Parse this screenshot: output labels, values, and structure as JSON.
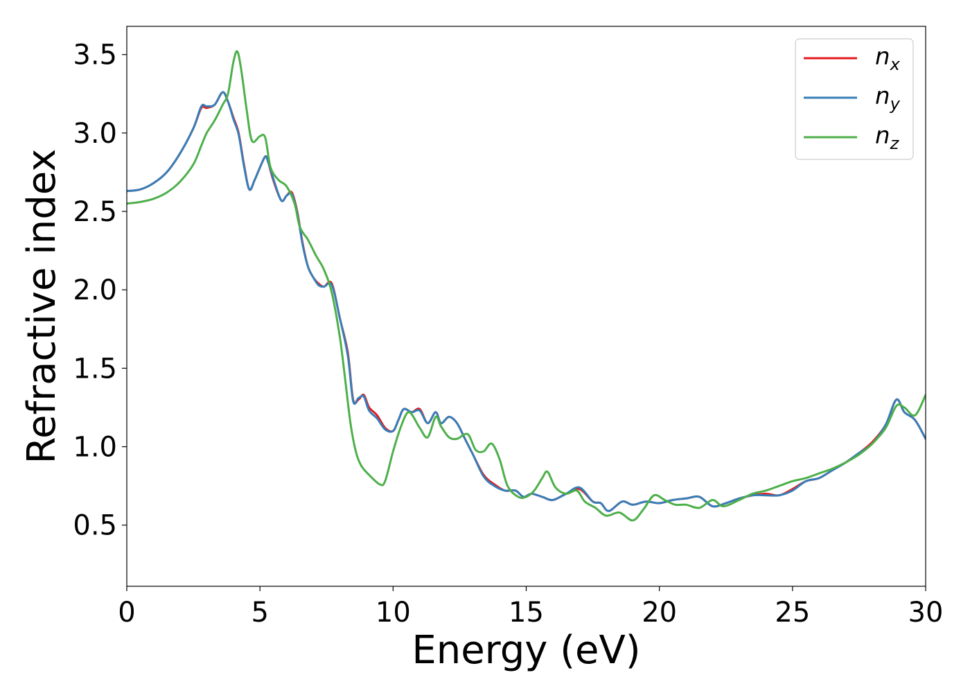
{
  "chart_data": {
    "type": "line",
    "title": "",
    "xlabel": "Energy (eV)",
    "ylabel": "Refractive index",
    "xlim": [
      0,
      30
    ],
    "ylim": [
      0.11,
      3.68
    ],
    "xticks": [
      0,
      5,
      10,
      15,
      20,
      25,
      30
    ],
    "yticks": [
      0.5,
      1.0,
      1.5,
      2.0,
      2.5,
      3.0,
      3.5
    ],
    "xtick_labels": [
      "0",
      "5",
      "10",
      "15",
      "20",
      "25",
      "30"
    ],
    "ytick_labels": [
      "0.5",
      "1.0",
      "1.5",
      "2.0",
      "2.5",
      "3.0",
      "3.5"
    ],
    "grid": false,
    "legend": {
      "position": "top-right",
      "entries": [
        {
          "symbol": "n",
          "sub": "x"
        },
        {
          "symbol": "n",
          "sub": "y"
        },
        {
          "symbol": "n",
          "sub": "z"
        }
      ]
    },
    "series": [
      {
        "name": "n_x",
        "color": "#e41a1c",
        "x": [
          0,
          0.5,
          1,
          1.5,
          2,
          2.5,
          2.8,
          3.0,
          3.3,
          3.6,
          3.8,
          4.0,
          4.2,
          4.4,
          4.6,
          4.8,
          5.0,
          5.2,
          5.3,
          5.5,
          5.8,
          6.0,
          6.2,
          6.4,
          6.6,
          6.8,
          7.0,
          7.2,
          7.4,
          7.7,
          8.0,
          8.3,
          8.5,
          8.7,
          8.9,
          9.1,
          9.4,
          9.7,
          10.0,
          10.2,
          10.4,
          10.7,
          11.0,
          11.3,
          11.6,
          11.8,
          12.1,
          12.4,
          12.7,
          13.0,
          13.4,
          13.8,
          14.2,
          14.6,
          14.9,
          15.2,
          15.6,
          16.0,
          16.5,
          17.0,
          17.5,
          17.8,
          18.1,
          18.6,
          19.0,
          19.5,
          20.0,
          20.5,
          21.0,
          21.5,
          22.0,
          22.5,
          23.0,
          23.5,
          24.0,
          24.5,
          25.0,
          25.5,
          26.0,
          26.5,
          27.0,
          27.5,
          28.0,
          28.5,
          28.9,
          29.2,
          29.6,
          30.0
        ],
        "y": [
          2.63,
          2.64,
          2.68,
          2.75,
          2.87,
          3.03,
          3.16,
          3.16,
          3.18,
          3.26,
          3.2,
          3.1,
          3.0,
          2.8,
          2.64,
          2.7,
          2.78,
          2.85,
          2.82,
          2.7,
          2.57,
          2.6,
          2.62,
          2.5,
          2.3,
          2.15,
          2.08,
          2.04,
          2.02,
          2.04,
          1.82,
          1.6,
          1.3,
          1.3,
          1.33,
          1.25,
          1.2,
          1.12,
          1.1,
          1.17,
          1.24,
          1.22,
          1.24,
          1.15,
          1.22,
          1.15,
          1.19,
          1.15,
          1.05,
          0.95,
          0.82,
          0.76,
          0.72,
          0.72,
          0.68,
          0.7,
          0.68,
          0.66,
          0.7,
          0.73,
          0.65,
          0.64,
          0.59,
          0.65,
          0.63,
          0.65,
          0.64,
          0.66,
          0.67,
          0.68,
          0.62,
          0.64,
          0.67,
          0.69,
          0.7,
          0.69,
          0.73,
          0.78,
          0.8,
          0.85,
          0.9,
          0.96,
          1.03,
          1.14,
          1.3,
          1.22,
          1.17,
          1.05
        ]
      },
      {
        "name": "n_y",
        "color": "#377eb8",
        "x": [
          0,
          0.5,
          1,
          1.5,
          2,
          2.5,
          2.8,
          3.0,
          3.3,
          3.6,
          3.8,
          4.0,
          4.2,
          4.4,
          4.6,
          4.8,
          5.0,
          5.2,
          5.3,
          5.5,
          5.8,
          6.0,
          6.2,
          6.4,
          6.6,
          6.8,
          7.0,
          7.2,
          7.4,
          7.7,
          8.0,
          8.3,
          8.5,
          8.7,
          8.9,
          9.1,
          9.4,
          9.7,
          10.0,
          10.2,
          10.4,
          10.7,
          11.0,
          11.3,
          11.6,
          11.8,
          12.1,
          12.4,
          12.7,
          13.0,
          13.4,
          13.8,
          14.2,
          14.6,
          14.9,
          15.2,
          15.6,
          16.0,
          16.5,
          17.0,
          17.5,
          17.8,
          18.1,
          18.6,
          19.0,
          19.5,
          20.0,
          20.5,
          21.0,
          21.5,
          22.0,
          22.5,
          23.0,
          23.5,
          24.0,
          24.5,
          25.0,
          25.5,
          26.0,
          26.5,
          27.0,
          27.5,
          28.0,
          28.5,
          28.9,
          29.2,
          29.6,
          30.0
        ],
        "y": [
          2.63,
          2.64,
          2.68,
          2.75,
          2.87,
          3.03,
          3.17,
          3.17,
          3.18,
          3.26,
          3.2,
          3.09,
          2.99,
          2.79,
          2.64,
          2.7,
          2.78,
          2.85,
          2.82,
          2.71,
          2.57,
          2.6,
          2.61,
          2.49,
          2.29,
          2.15,
          2.08,
          2.03,
          2.02,
          2.03,
          1.82,
          1.58,
          1.29,
          1.31,
          1.32,
          1.23,
          1.18,
          1.11,
          1.1,
          1.17,
          1.24,
          1.22,
          1.23,
          1.15,
          1.22,
          1.15,
          1.19,
          1.15,
          1.05,
          0.95,
          0.81,
          0.75,
          0.72,
          0.72,
          0.68,
          0.7,
          0.68,
          0.66,
          0.7,
          0.74,
          0.65,
          0.64,
          0.59,
          0.65,
          0.63,
          0.65,
          0.64,
          0.66,
          0.67,
          0.68,
          0.62,
          0.64,
          0.67,
          0.69,
          0.69,
          0.69,
          0.72,
          0.78,
          0.8,
          0.85,
          0.9,
          0.96,
          1.02,
          1.14,
          1.3,
          1.22,
          1.17,
          1.05
        ]
      },
      {
        "name": "n_z",
        "color": "#4daf4a",
        "x": [
          0,
          0.5,
          1,
          1.5,
          2,
          2.5,
          2.8,
          3.0,
          3.3,
          3.6,
          3.8,
          4.0,
          4.15,
          4.3,
          4.5,
          4.7,
          5.0,
          5.2,
          5.4,
          5.7,
          6.0,
          6.3,
          6.5,
          6.8,
          7.1,
          7.4,
          7.7,
          8.0,
          8.2,
          8.4,
          8.6,
          8.8,
          9.1,
          9.5,
          9.7,
          10.0,
          10.3,
          10.6,
          11.0,
          11.3,
          11.6,
          11.8,
          12.1,
          12.4,
          12.8,
          13.1,
          13.4,
          13.7,
          14.0,
          14.3,
          14.7,
          15.0,
          15.3,
          15.6,
          15.8,
          16.1,
          16.5,
          16.9,
          17.2,
          17.6,
          18.0,
          18.5,
          19.0,
          19.4,
          19.8,
          20.2,
          20.6,
          21.0,
          21.5,
          22.0,
          22.4,
          23.0,
          23.5,
          24.0,
          24.5,
          25.0,
          25.5,
          26.0,
          26.5,
          27.0,
          27.5,
          28.0,
          28.5,
          28.9,
          29.2,
          29.6,
          30.0
        ],
        "y": [
          2.55,
          2.56,
          2.58,
          2.62,
          2.69,
          2.8,
          2.92,
          3.0,
          3.08,
          3.18,
          3.25,
          3.45,
          3.52,
          3.4,
          3.15,
          2.95,
          2.98,
          2.97,
          2.78,
          2.7,
          2.66,
          2.55,
          2.4,
          2.32,
          2.22,
          2.13,
          1.98,
          1.7,
          1.43,
          1.15,
          0.97,
          0.88,
          0.82,
          0.76,
          0.78,
          0.97,
          1.13,
          1.22,
          1.12,
          1.06,
          1.19,
          1.13,
          1.06,
          1.05,
          1.08,
          0.98,
          0.97,
          1.02,
          0.92,
          0.75,
          0.68,
          0.68,
          0.72,
          0.8,
          0.84,
          0.74,
          0.7,
          0.72,
          0.65,
          0.61,
          0.56,
          0.58,
          0.53,
          0.6,
          0.69,
          0.66,
          0.63,
          0.63,
          0.61,
          0.66,
          0.62,
          0.66,
          0.7,
          0.72,
          0.75,
          0.78,
          0.8,
          0.83,
          0.86,
          0.9,
          0.95,
          1.02,
          1.12,
          1.26,
          1.25,
          1.2,
          1.33
        ]
      }
    ]
  }
}
